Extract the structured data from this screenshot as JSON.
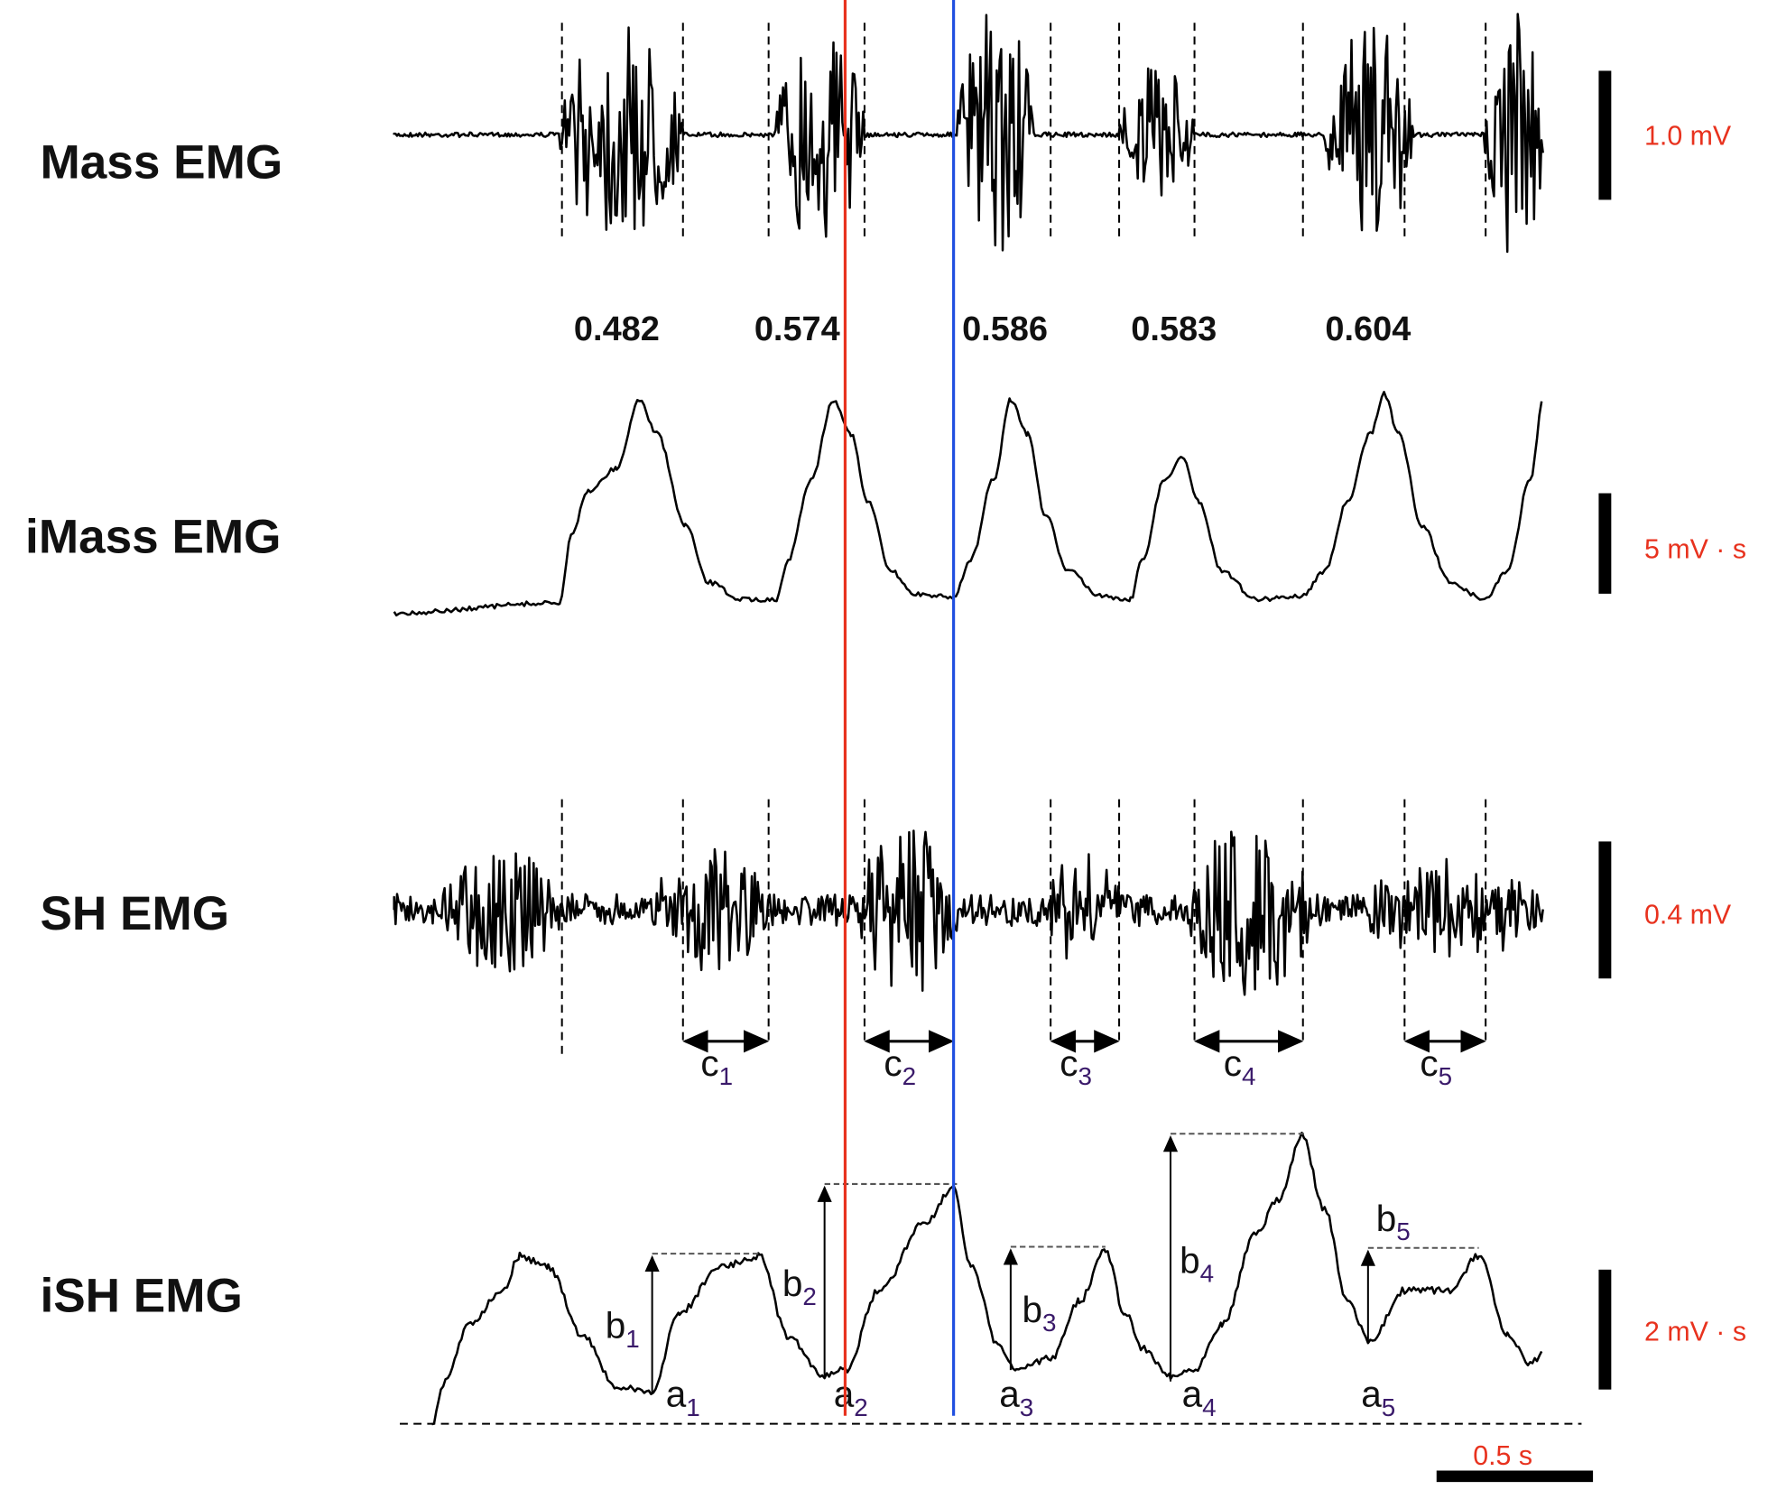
{
  "traces": [
    {
      "label": "Mass EMG",
      "scale": "1.0 mV"
    },
    {
      "label": "iMass EMG",
      "scale": "5 mV · s"
    },
    {
      "label": "SH EMG",
      "scale": "0.4 mV"
    },
    {
      "label": "iSH EMG",
      "scale": "2 mV · s"
    }
  ],
  "intervals": [
    0.482,
    0.574,
    0.586,
    0.583,
    0.604
  ],
  "c_labels": [
    [
      "c",
      "1"
    ],
    [
      "c",
      "2"
    ],
    [
      "c",
      "3"
    ],
    [
      "c",
      "4"
    ],
    [
      "c",
      "5"
    ]
  ],
  "b_labels": [
    [
      "b",
      "1"
    ],
    [
      "b",
      "2"
    ],
    [
      "b",
      "3"
    ],
    [
      "b",
      "4"
    ],
    [
      "b",
      "5"
    ]
  ],
  "a_labels": [
    [
      "a",
      "1"
    ],
    [
      "a",
      "2"
    ],
    [
      "a",
      "3"
    ],
    [
      "a",
      "4"
    ],
    [
      "a",
      "5"
    ]
  ],
  "time_scale": "0.5 s"
}
